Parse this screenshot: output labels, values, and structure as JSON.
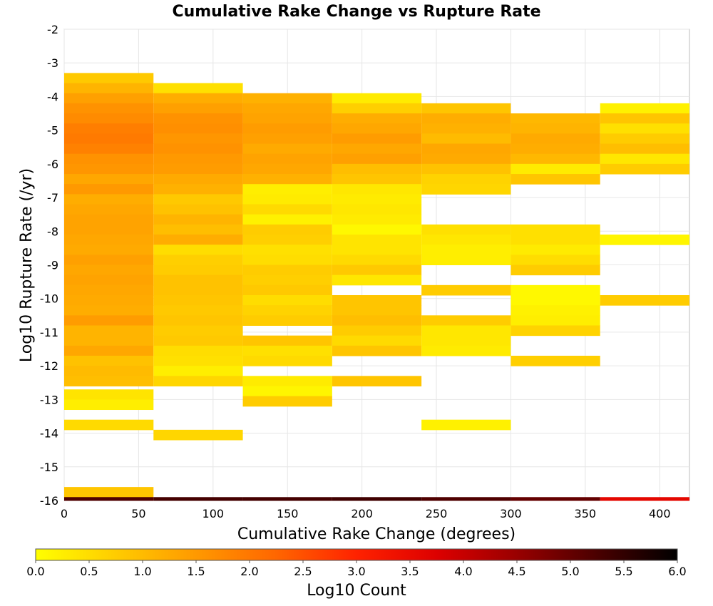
{
  "chart_data": {
    "type": "heatmap",
    "title": "Cumulative Rake Change vs Rupture Rate",
    "xlabel": "Cumulative Rake Change (degrees)",
    "ylabel": "Log10 Rupture Rate (/yr)",
    "xlim": [
      0,
      420
    ],
    "ylim": [
      -16,
      -2
    ],
    "xticks": [
      0,
      50,
      100,
      150,
      200,
      250,
      300,
      350,
      400
    ],
    "yticks": [
      -2,
      -3,
      -4,
      -5,
      -6,
      -7,
      -8,
      -9,
      -10,
      -11,
      -12,
      -13,
      -14,
      -15,
      -16
    ],
    "x_bin_width": 60,
    "y_bin_height": 0.3,
    "grid": true,
    "colorbar": {
      "label": "Log10 Count",
      "range": [
        0.0,
        6.0
      ],
      "ticks": [
        "0.0",
        "0.5",
        "1.0",
        "1.5",
        "2.0",
        "2.5",
        "3.0",
        "3.5",
        "4.0",
        "4.5",
        "5.0",
        "5.5",
        "6.0"
      ],
      "colors": [
        "#ffff00",
        "#ffcc00",
        "#ff9900",
        "#ff6600",
        "#ff2200",
        "#dd0000",
        "#990000",
        "#4a0000",
        "#000000"
      ]
    },
    "columns": [
      {
        "x0": 0,
        "x1": 60,
        "cells": [
          [
            -3.3,
            -3.6,
            0.8
          ],
          [
            -3.6,
            -3.9,
            1.1
          ],
          [
            -3.9,
            -4.2,
            1.4
          ],
          [
            -4.2,
            -4.5,
            1.6
          ],
          [
            -4.5,
            -4.8,
            1.7
          ],
          [
            -4.8,
            -5.1,
            1.9
          ],
          [
            -5.1,
            -5.4,
            1.95
          ],
          [
            -5.4,
            -5.7,
            1.85
          ],
          [
            -5.7,
            -6.0,
            1.6
          ],
          [
            -6.0,
            -6.3,
            1.55
          ],
          [
            -6.3,
            -6.6,
            1.3
          ],
          [
            -6.6,
            -6.9,
            1.5
          ],
          [
            -6.9,
            -7.2,
            1.2
          ],
          [
            -7.2,
            -7.5,
            1.3
          ],
          [
            -7.5,
            -7.8,
            1.35
          ],
          [
            -7.8,
            -8.1,
            1.35
          ],
          [
            -8.1,
            -8.4,
            1.3
          ],
          [
            -8.4,
            -8.7,
            1.25
          ],
          [
            -8.7,
            -9.0,
            1.4
          ],
          [
            -9.0,
            -9.3,
            1.3
          ],
          [
            -9.3,
            -9.6,
            1.35
          ],
          [
            -9.6,
            -9.9,
            1.3
          ],
          [
            -9.9,
            -10.2,
            1.25
          ],
          [
            -10.2,
            -10.5,
            1.2
          ],
          [
            -10.5,
            -10.8,
            1.45
          ],
          [
            -10.8,
            -11.1,
            1.1
          ],
          [
            -11.1,
            -11.4,
            1.1
          ],
          [
            -11.4,
            -11.7,
            1.3
          ],
          [
            -11.7,
            -12.0,
            0.9
          ],
          [
            -12.0,
            -12.3,
            1.0
          ],
          [
            -12.3,
            -12.6,
            0.95
          ],
          [
            -12.7,
            -13.0,
            0.4
          ],
          [
            -13.0,
            -13.3,
            0.25
          ],
          [
            -13.6,
            -13.9,
            0.55
          ],
          [
            -15.6,
            -15.9,
            0.85
          ],
          [
            -15.9,
            -16.0,
            5.2
          ]
        ]
      },
      {
        "x0": 60,
        "x1": 120,
        "cells": [
          [
            -3.6,
            -3.9,
            0.45
          ],
          [
            -3.9,
            -4.2,
            1.2
          ],
          [
            -4.2,
            -4.5,
            1.4
          ],
          [
            -4.5,
            -4.8,
            1.6
          ],
          [
            -4.8,
            -5.1,
            1.65
          ],
          [
            -5.1,
            -5.4,
            1.55
          ],
          [
            -5.4,
            -5.7,
            1.6
          ],
          [
            -5.7,
            -6.0,
            1.5
          ],
          [
            -6.0,
            -6.3,
            1.45
          ],
          [
            -6.3,
            -6.6,
            1.25
          ],
          [
            -6.6,
            -6.9,
            1.15
          ],
          [
            -6.9,
            -7.2,
            0.8
          ],
          [
            -7.2,
            -7.5,
            0.9
          ],
          [
            -7.5,
            -7.8,
            1.1
          ],
          [
            -7.8,
            -8.1,
            0.95
          ],
          [
            -8.1,
            -8.4,
            1.2
          ],
          [
            -8.4,
            -8.7,
            0.5
          ],
          [
            -8.7,
            -9.0,
            0.7
          ],
          [
            -9.0,
            -9.3,
            0.75
          ],
          [
            -9.3,
            -9.6,
            0.9
          ],
          [
            -9.6,
            -9.9,
            0.9
          ],
          [
            -9.9,
            -10.2,
            0.85
          ],
          [
            -10.2,
            -10.5,
            0.8
          ],
          [
            -10.5,
            -10.8,
            0.85
          ],
          [
            -10.8,
            -11.1,
            0.75
          ],
          [
            -11.1,
            -11.4,
            0.8
          ],
          [
            -11.4,
            -11.7,
            0.5
          ],
          [
            -11.7,
            -12.0,
            0.45
          ],
          [
            -12.0,
            -12.3,
            0.25
          ],
          [
            -12.3,
            -12.6,
            0.6
          ],
          [
            -13.9,
            -14.2,
            0.6
          ],
          [
            -15.9,
            -16.0,
            5.3
          ]
        ]
      },
      {
        "x0": 120,
        "x1": 180,
        "cells": [
          [
            -3.9,
            -4.2,
            1.15
          ],
          [
            -4.2,
            -4.5,
            1.3
          ],
          [
            -4.5,
            -4.8,
            1.35
          ],
          [
            -4.8,
            -5.1,
            1.45
          ],
          [
            -5.1,
            -5.4,
            1.4
          ],
          [
            -5.4,
            -5.7,
            1.25
          ],
          [
            -5.7,
            -6.0,
            1.35
          ],
          [
            -6.0,
            -6.3,
            1.3
          ],
          [
            -6.3,
            -6.6,
            1.15
          ],
          [
            -6.6,
            -6.9,
            0.25
          ],
          [
            -6.9,
            -7.2,
            0.3
          ],
          [
            -7.2,
            -7.5,
            0.55
          ],
          [
            -7.5,
            -7.8,
            0.2
          ],
          [
            -7.8,
            -8.1,
            0.75
          ],
          [
            -8.1,
            -8.4,
            0.7
          ],
          [
            -8.4,
            -8.7,
            0.45
          ],
          [
            -8.7,
            -9.0,
            0.5
          ],
          [
            -9.0,
            -9.3,
            0.75
          ],
          [
            -9.3,
            -9.6,
            0.7
          ],
          [
            -9.6,
            -9.9,
            0.8
          ],
          [
            -9.9,
            -10.2,
            0.5
          ],
          [
            -10.2,
            -10.5,
            0.65
          ],
          [
            -10.5,
            -10.8,
            0.75
          ],
          [
            -11.1,
            -11.4,
            0.85
          ],
          [
            -11.4,
            -11.7,
            0.45
          ],
          [
            -11.7,
            -12.0,
            0.55
          ],
          [
            -12.3,
            -12.6,
            0.3
          ],
          [
            -12.6,
            -12.9,
            0.15
          ],
          [
            -12.9,
            -13.2,
            0.75
          ],
          [
            -15.9,
            -16.0,
            5.3
          ]
        ]
      },
      {
        "x0": 180,
        "x1": 240,
        "cells": [
          [
            -3.9,
            -4.2,
            0.3
          ],
          [
            -4.2,
            -4.5,
            0.7
          ],
          [
            -4.5,
            -4.8,
            1.2
          ],
          [
            -4.8,
            -5.1,
            1.3
          ],
          [
            -5.1,
            -5.4,
            1.45
          ],
          [
            -5.4,
            -5.7,
            1.3
          ],
          [
            -5.7,
            -6.0,
            1.4
          ],
          [
            -6.0,
            -6.3,
            0.95
          ],
          [
            -6.3,
            -6.6,
            0.85
          ],
          [
            -6.6,
            -6.9,
            0.35
          ],
          [
            -6.9,
            -7.2,
            0.3
          ],
          [
            -7.2,
            -7.5,
            0.35
          ],
          [
            -7.5,
            -7.8,
            0.3
          ],
          [
            -7.8,
            -8.1,
            0.1
          ],
          [
            -8.1,
            -8.4,
            0.4
          ],
          [
            -8.4,
            -8.7,
            0.4
          ],
          [
            -8.7,
            -9.0,
            0.55
          ],
          [
            -9.0,
            -9.3,
            0.8
          ],
          [
            -9.3,
            -9.6,
            0.35
          ],
          [
            -9.9,
            -10.2,
            0.85
          ],
          [
            -10.2,
            -10.5,
            0.85
          ],
          [
            -10.5,
            -10.8,
            0.95
          ],
          [
            -10.8,
            -11.1,
            0.75
          ],
          [
            -11.1,
            -11.4,
            0.55
          ],
          [
            -11.4,
            -11.7,
            0.85
          ],
          [
            -12.3,
            -12.6,
            0.85
          ],
          [
            -15.9,
            -16.0,
            5.35
          ]
        ]
      },
      {
        "x0": 240,
        "x1": 300,
        "cells": [
          [
            -4.2,
            -4.5,
            0.85
          ],
          [
            -4.5,
            -4.8,
            1.2
          ],
          [
            -4.8,
            -5.1,
            1.15
          ],
          [
            -5.1,
            -5.4,
            1.0
          ],
          [
            -5.4,
            -5.7,
            1.3
          ],
          [
            -5.7,
            -6.0,
            1.25
          ],
          [
            -6.0,
            -6.3,
            0.9
          ],
          [
            -6.3,
            -6.6,
            0.65
          ],
          [
            -6.6,
            -6.9,
            0.6
          ],
          [
            -7.8,
            -8.1,
            0.45
          ],
          [
            -8.1,
            -8.4,
            0.35
          ],
          [
            -8.4,
            -8.7,
            0.25
          ],
          [
            -8.7,
            -9.0,
            0.25
          ],
          [
            -9.6,
            -9.9,
            0.75
          ],
          [
            -10.5,
            -10.8,
            0.75
          ],
          [
            -10.8,
            -11.1,
            0.35
          ],
          [
            -11.1,
            -11.4,
            0.35
          ],
          [
            -11.4,
            -11.7,
            0.3
          ],
          [
            -13.6,
            -13.9,
            0.2
          ],
          [
            -15.9,
            -16.0,
            5.2
          ]
        ]
      },
      {
        "x0": 300,
        "x1": 360,
        "cells": [
          [
            -4.5,
            -4.8,
            1.05
          ],
          [
            -4.8,
            -5.1,
            1.1
          ],
          [
            -5.1,
            -5.4,
            1.25
          ],
          [
            -5.4,
            -5.7,
            1.2
          ],
          [
            -5.7,
            -6.0,
            1.05
          ],
          [
            -6.0,
            -6.3,
            0.3
          ],
          [
            -6.3,
            -6.6,
            0.85
          ],
          [
            -7.8,
            -8.1,
            0.45
          ],
          [
            -8.1,
            -8.4,
            0.45
          ],
          [
            -8.4,
            -8.7,
            0.3
          ],
          [
            -8.7,
            -9.0,
            0.5
          ],
          [
            -9.0,
            -9.3,
            0.75
          ],
          [
            -9.6,
            -9.9,
            0.1
          ],
          [
            -9.9,
            -10.2,
            0.1
          ],
          [
            -10.2,
            -10.5,
            0.2
          ],
          [
            -10.5,
            -10.8,
            0.25
          ],
          [
            -10.8,
            -11.1,
            0.65
          ],
          [
            -11.7,
            -12.0,
            0.7
          ],
          [
            -15.9,
            -16.0,
            5.0
          ]
        ]
      },
      {
        "x0": 360,
        "x1": 420,
        "cells": [
          [
            -4.2,
            -4.5,
            0.2
          ],
          [
            -4.5,
            -4.8,
            0.85
          ],
          [
            -4.8,
            -5.1,
            0.45
          ],
          [
            -5.1,
            -5.4,
            0.75
          ],
          [
            -5.4,
            -5.7,
            0.95
          ],
          [
            -5.7,
            -6.0,
            0.35
          ],
          [
            -6.0,
            -6.3,
            0.75
          ],
          [
            -8.1,
            -8.4,
            0.15
          ],
          [
            -9.9,
            -10.2,
            0.75
          ],
          [
            -15.9,
            -16.0,
            3.6
          ]
        ]
      }
    ]
  }
}
